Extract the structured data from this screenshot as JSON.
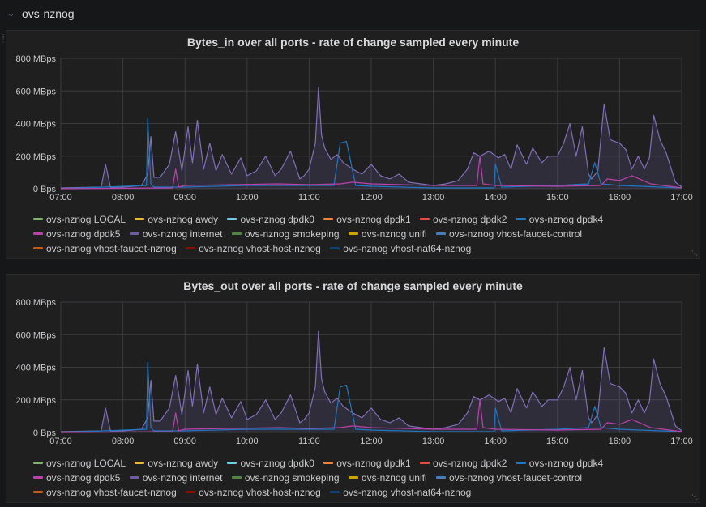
{
  "row": {
    "title": "ovs-nznog",
    "collapse_icon": "chevron-down-icon"
  },
  "colors": {
    "background": "#161719",
    "panel": "#1f1f20",
    "grid": "#3a3b3d",
    "axis_text": "#c8c9ca",
    "primary_series": "#806eb7",
    "primary_fill": "rgba(128,110,183,0.18)",
    "secondary_series": "#1f78c1",
    "tertiary_series": "#ba43a9"
  },
  "panels": [
    {
      "title": "Bytes_in over all ports - rate of change sampled every minute",
      "chart_data": {
        "type": "line",
        "title": "Bytes_in over all ports - rate of change sampled every minute",
        "xlabel": "",
        "ylabel": "",
        "ylim": [
          0,
          800
        ],
        "y_unit": "MBps",
        "yticks": [
          "0 Bps",
          "200 MBps",
          "400 MBps",
          "600 MBps",
          "800 MBps"
        ],
        "xticks": [
          "07:00",
          "08:00",
          "09:00",
          "10:00",
          "11:00",
          "12:00",
          "13:00",
          "14:00",
          "15:00",
          "16:00",
          "17:00"
        ],
        "x_unit": "hours",
        "series": [
          {
            "name": "ovs-nznog internet",
            "color": "#806eb7",
            "x": [
              7.0,
              7.4,
              7.65,
              7.72,
              7.8,
              8.0,
              8.3,
              8.4,
              8.45,
              8.5,
              8.6,
              8.75,
              8.85,
              8.95,
              9.05,
              9.12,
              9.2,
              9.3,
              9.4,
              9.5,
              9.6,
              9.75,
              9.9,
              10.0,
              10.15,
              10.3,
              10.45,
              10.55,
              10.7,
              10.85,
              10.92,
              11.0,
              11.1,
              11.15,
              11.2,
              11.25,
              11.35,
              11.45,
              11.55,
              11.7,
              11.85,
              12.0,
              12.15,
              12.3,
              12.45,
              12.6,
              12.8,
              13.0,
              13.2,
              13.4,
              13.55,
              13.65,
              13.75,
              13.9,
              14.05,
              14.15,
              14.25,
              14.35,
              14.5,
              14.6,
              14.75,
              14.85,
              15.0,
              15.1,
              15.2,
              15.3,
              15.4,
              15.5,
              15.55,
              15.65,
              15.75,
              15.85,
              16.0,
              16.1,
              16.2,
              16.3,
              16.4,
              16.48,
              16.55,
              16.65,
              16.75,
              16.9,
              17.0
            ],
            "values": [
              5,
              8,
              10,
              150,
              8,
              10,
              20,
              90,
              320,
              70,
              70,
              150,
              350,
              110,
              380,
              160,
              420,
              120,
              280,
              110,
              210,
              90,
              190,
              80,
              110,
              200,
              80,
              120,
              230,
              60,
              80,
              120,
              280,
              620,
              330,
              250,
              180,
              210,
              160,
              120,
              90,
              150,
              80,
              60,
              90,
              40,
              30,
              20,
              30,
              50,
              120,
              220,
              200,
              230,
              190,
              210,
              120,
              270,
              150,
              250,
              160,
              200,
              200,
              280,
              400,
              200,
              380,
              90,
              60,
              110,
              520,
              300,
              280,
              240,
              120,
              200,
              120,
              190,
              450,
              300,
              220,
              40,
              10
            ]
          },
          {
            "name": "ovs-nznog dpdk4",
            "color": "#1f78c1",
            "x": [
              7.0,
              8.38,
              8.4,
              8.45,
              8.5,
              9.0,
              10.0,
              11.4,
              11.5,
              11.6,
              11.75,
              12.0,
              13.0,
              13.98,
              14.0,
              14.1,
              15.0,
              15.5,
              15.6,
              15.7,
              16.0,
              17.0
            ],
            "values": [
              0,
              20,
              430,
              30,
              10,
              10,
              20,
              20,
              280,
              290,
              20,
              15,
              5,
              5,
              150,
              10,
              20,
              30,
              160,
              30,
              20,
              5
            ]
          },
          {
            "name": "ovs-nznog dpdk5",
            "color": "#ba43a9",
            "x": [
              7.0,
              8.8,
              8.85,
              8.9,
              9.0,
              10.5,
              11.0,
              11.5,
              11.7,
              12.0,
              13.0,
              13.7,
              13.75,
              13.8,
              14.0,
              15.0,
              15.7,
              15.8,
              16.0,
              16.2,
              16.5,
              17.0
            ],
            "values": [
              0,
              5,
              120,
              10,
              20,
              30,
              25,
              30,
              40,
              30,
              20,
              20,
              200,
              30,
              20,
              15,
              20,
              60,
              50,
              80,
              30,
              5
            ]
          }
        ]
      },
      "legend": [
        [
          {
            "label": "ovs-nznog LOCAL",
            "color": "#7eb26d"
          },
          {
            "label": "ovs-nznog awdy",
            "color": "#eab839"
          },
          {
            "label": "ovs-nznog dpdk0",
            "color": "#6ed0e0"
          },
          {
            "label": "ovs-nznog dpdk1",
            "color": "#ef843c"
          },
          {
            "label": "ovs-nznog dpdk2",
            "color": "#e24d42"
          },
          {
            "label": "ovs-nznog dpdk4",
            "color": "#1f78c1"
          }
        ],
        [
          {
            "label": "ovs-nznog dpdk5",
            "color": "#ba43a9"
          },
          {
            "label": "ovs-nznog internet",
            "color": "#705da0"
          },
          {
            "label": "ovs-nznog smokeping",
            "color": "#508642"
          },
          {
            "label": "ovs-nznog unifi",
            "color": "#cca300"
          },
          {
            "label": "ovs-nznog vhost-faucet-control",
            "color": "#447ebc"
          }
        ],
        [
          {
            "label": "ovs-nznog vhost-faucet-nznog",
            "color": "#c15c17"
          },
          {
            "label": "ovs-nznog vhost-host-nznog",
            "color": "#890f02"
          },
          {
            "label": "ovs-nznog vhost-nat64-nznog",
            "color": "#0a437c"
          }
        ]
      ]
    },
    {
      "title": "Bytes_out over all ports - rate of change sampled every minute",
      "chart_data": {
        "type": "line",
        "title": "Bytes_out over all ports - rate of change sampled every minute",
        "xlabel": "",
        "ylabel": "",
        "ylim": [
          0,
          800
        ],
        "y_unit": "MBps",
        "yticks": [
          "0 Bps",
          "200 MBps",
          "400 MBps",
          "600 MBps",
          "800 MBps"
        ],
        "xticks": [
          "07:00",
          "08:00",
          "09:00",
          "10:00",
          "11:00",
          "12:00",
          "13:00",
          "14:00",
          "15:00",
          "16:00",
          "17:00"
        ],
        "x_unit": "hours",
        "series": [
          {
            "name": "ovs-nznog internet",
            "color": "#806eb7",
            "x": [
              7.0,
              7.4,
              7.65,
              7.72,
              7.8,
              8.0,
              8.3,
              8.4,
              8.45,
              8.5,
              8.6,
              8.75,
              8.85,
              8.95,
              9.05,
              9.12,
              9.2,
              9.3,
              9.4,
              9.5,
              9.6,
              9.75,
              9.9,
              10.0,
              10.15,
              10.3,
              10.45,
              10.55,
              10.7,
              10.85,
              10.92,
              11.0,
              11.1,
              11.15,
              11.2,
              11.25,
              11.35,
              11.45,
              11.55,
              11.7,
              11.85,
              12.0,
              12.15,
              12.3,
              12.45,
              12.6,
              12.8,
              13.0,
              13.2,
              13.4,
              13.55,
              13.65,
              13.75,
              13.9,
              14.05,
              14.15,
              14.25,
              14.35,
              14.5,
              14.6,
              14.75,
              14.85,
              15.0,
              15.1,
              15.2,
              15.3,
              15.4,
              15.5,
              15.55,
              15.65,
              15.75,
              15.85,
              16.0,
              16.1,
              16.2,
              16.3,
              16.4,
              16.48,
              16.55,
              16.65,
              16.75,
              16.9,
              17.0
            ],
            "values": [
              5,
              8,
              10,
              150,
              8,
              10,
              20,
              90,
              320,
              70,
              70,
              150,
              350,
              110,
              380,
              160,
              420,
              120,
              280,
              110,
              210,
              90,
              190,
              80,
              110,
              200,
              80,
              120,
              230,
              60,
              80,
              120,
              280,
              620,
              330,
              250,
              180,
              210,
              160,
              120,
              90,
              150,
              80,
              60,
              90,
              40,
              30,
              20,
              30,
              50,
              120,
              220,
              200,
              230,
              190,
              210,
              120,
              270,
              150,
              250,
              160,
              200,
              200,
              280,
              400,
              200,
              380,
              90,
              60,
              110,
              520,
              300,
              280,
              240,
              120,
              200,
              120,
              190,
              450,
              300,
              220,
              40,
              10
            ]
          },
          {
            "name": "ovs-nznog dpdk4",
            "color": "#1f78c1",
            "x": [
              7.0,
              8.38,
              8.4,
              8.45,
              8.5,
              9.0,
              10.0,
              11.4,
              11.5,
              11.6,
              11.75,
              12.0,
              13.0,
              13.98,
              14.0,
              14.1,
              15.0,
              15.5,
              15.6,
              15.7,
              16.0,
              17.0
            ],
            "values": [
              0,
              20,
              430,
              30,
              10,
              10,
              20,
              20,
              280,
              290,
              20,
              15,
              5,
              5,
              150,
              10,
              20,
              30,
              160,
              30,
              20,
              5
            ]
          },
          {
            "name": "ovs-nznog dpdk5",
            "color": "#ba43a9",
            "x": [
              7.0,
              8.8,
              8.85,
              8.9,
              9.0,
              10.5,
              11.0,
              11.5,
              11.7,
              12.0,
              13.0,
              13.7,
              13.75,
              13.8,
              14.0,
              15.0,
              15.7,
              15.8,
              16.0,
              16.2,
              16.5,
              17.0
            ],
            "values": [
              0,
              5,
              120,
              10,
              20,
              30,
              25,
              30,
              40,
              30,
              20,
              20,
              200,
              30,
              20,
              15,
              20,
              60,
              50,
              80,
              30,
              5
            ]
          }
        ]
      },
      "legend": [
        [
          {
            "label": "ovs-nznog LOCAL",
            "color": "#7eb26d"
          },
          {
            "label": "ovs-nznog awdy",
            "color": "#eab839"
          },
          {
            "label": "ovs-nznog dpdk0",
            "color": "#6ed0e0"
          },
          {
            "label": "ovs-nznog dpdk1",
            "color": "#ef843c"
          },
          {
            "label": "ovs-nznog dpdk2",
            "color": "#e24d42"
          },
          {
            "label": "ovs-nznog dpdk4",
            "color": "#1f78c1"
          }
        ],
        [
          {
            "label": "ovs-nznog dpdk5",
            "color": "#ba43a9"
          },
          {
            "label": "ovs-nznog internet",
            "color": "#705da0"
          },
          {
            "label": "ovs-nznog smokeping",
            "color": "#508642"
          },
          {
            "label": "ovs-nznog unifi",
            "color": "#cca300"
          },
          {
            "label": "ovs-nznog vhost-faucet-control",
            "color": "#447ebc"
          }
        ],
        [
          {
            "label": "ovs-nznog vhost-faucet-nznog",
            "color": "#c15c17"
          },
          {
            "label": "ovs-nznog vhost-host-nznog",
            "color": "#890f02"
          },
          {
            "label": "ovs-nznog vhost-nat64-nznog",
            "color": "#0a437c"
          }
        ]
      ]
    }
  ]
}
